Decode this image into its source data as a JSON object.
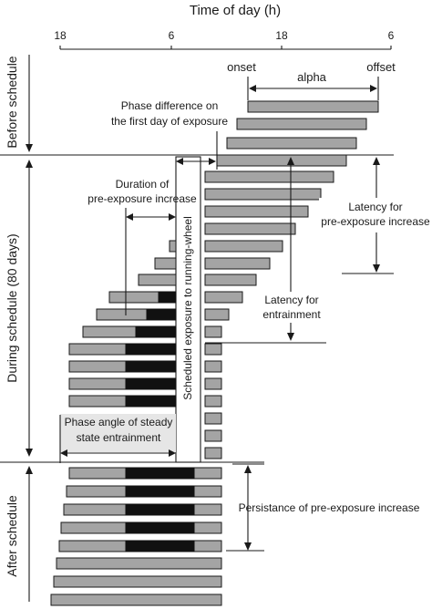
{
  "axis": {
    "title": "Time of day (h)",
    "ticks": [
      "18",
      "6",
      "18",
      "6"
    ]
  },
  "phases": {
    "before": "Before schedule",
    "during": "During schedule (80 days)",
    "after": "After schedule"
  },
  "labels": {
    "onset": "onset",
    "alpha": "alpha",
    "offset": "offset",
    "phase_diff_1": "Phase difference on",
    "phase_diff_2": "the first day of exposure",
    "duration_1": "Duration of",
    "duration_2": "pre-exposure increase",
    "scheduled": "Scheduled exposure to running-wheel",
    "latency_pre_1": "Latency for",
    "latency_pre_2": "pre-exposure increase",
    "latency_ent_1": "Latency for",
    "latency_ent_2": "entrainment",
    "phase_angle_1": "Phase angle of steady",
    "phase_angle_2": "state entrainment",
    "persistence": "Persistance of pre-exposure increase"
  },
  "colors": {
    "ink": "#1a1a1a",
    "activity_gray": "#a4a4a4",
    "pre_exposure_black": "#111111",
    "background": "#ffffff"
  }
}
